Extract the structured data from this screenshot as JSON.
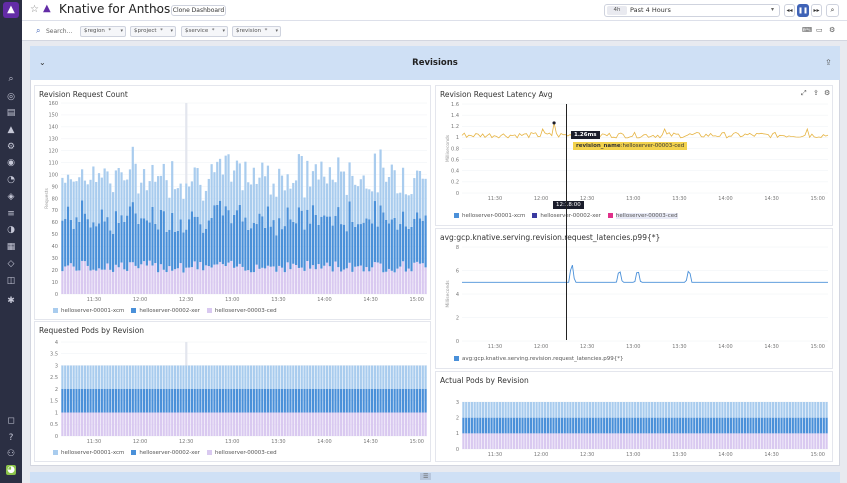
{
  "header": {
    "title": "Knative for Anthos",
    "clone_label": "Clone Dashboard",
    "time_badge": "4h",
    "time_range": "Past 4 Hours"
  },
  "toolbar": {
    "search_placeholder": "Search...",
    "variables": [
      {
        "label": "$region",
        "value": "*"
      },
      {
        "label": "$project",
        "value": "*"
      },
      {
        "label": "$service",
        "value": "*"
      },
      {
        "label": "$revision",
        "value": "*"
      }
    ]
  },
  "group": {
    "title": "Revisions"
  },
  "widgets": {
    "req_count": {
      "title": "Revision Request Count",
      "ylabel": "Requests"
    },
    "latency": {
      "title": "Revision Request Latency Avg",
      "ylabel": "Milliseconds",
      "tooltip_value": "1.26ms",
      "tooltip_label": "revision_name",
      "tooltip_series": "helloserver-00003-ced",
      "cursor_time": "12:18:00"
    },
    "p99": {
      "title": "avg:gcp.knative.serving.revision.request_latencies.p99{*}",
      "ylabel": "Milliseconds",
      "legend": "avg:gcp.knative.serving.revision.request_latencies.p99{*}"
    },
    "req_pods": {
      "title": "Requested Pods by Revision"
    },
    "actual_pods": {
      "title": "Actual Pods by Revision"
    }
  },
  "colors": {
    "s1": "#a9ccee",
    "s2": "#4a90d9",
    "s3": "#d9c9f0",
    "accent": "#632ca6",
    "latency": "#e6b443",
    "p99": "#4a90d9"
  },
  "chart_data": [
    {
      "type": "bar",
      "title": "Revision Request Count",
      "ylabel": "Requests",
      "ylim": [
        0,
        160
      ],
      "yticks": [
        0,
        10,
        20,
        30,
        40,
        50,
        60,
        70,
        80,
        90,
        100,
        110,
        120,
        130,
        140,
        150,
        160
      ],
      "xticks": [
        "11:30",
        "12:00",
        "12:30",
        "13:00",
        "13:30",
        "14:00",
        "14:30",
        "15:00"
      ],
      "stacked": true,
      "series": [
        {
          "name": "helloserver-00001-xcm",
          "approx_range": [
            25,
            45
          ]
        },
        {
          "name": "helloserver-00002-xer",
          "approx_range": [
            30,
            50
          ]
        },
        {
          "name": "helloserver-00003-ced",
          "approx_range": [
            20,
            30
          ]
        }
      ],
      "approx_total_range": [
        75,
        115
      ]
    },
    {
      "type": "line",
      "title": "Revision Request Latency Avg",
      "ylabel": "Milliseconds",
      "ylim": [
        0,
        1.6
      ],
      "yticks": [
        0,
        0.2,
        0.4,
        0.6,
        0.8,
        1,
        1.2,
        1.4,
        1.6
      ],
      "xticks": [
        "11:30",
        "12:00",
        "12:30",
        "13:00",
        "13:30",
        "14:00",
        "14:30",
        "15:00"
      ],
      "series": [
        {
          "name": "helloserver-00001-xcm",
          "approx_value": 1.05
        },
        {
          "name": "helloserver-00002-xer",
          "approx_value": 1.05
        },
        {
          "name": "helloserver-00003-ced",
          "approx_value": 1.05
        }
      ],
      "tooltip": {
        "value": "1.26ms",
        "time": "12:18:00",
        "series": "helloserver-00003-ced"
      }
    },
    {
      "type": "line",
      "title": "avg:gcp.knative.serving.revision.request_latencies.p99{*}",
      "ylabel": "Milliseconds",
      "ylim": [
        0,
        8
      ],
      "yticks": [
        0,
        2,
        4,
        6,
        8
      ],
      "xticks": [
        "11:30",
        "12:00",
        "12:30",
        "13:00",
        "13:30",
        "14:00",
        "14:30",
        "15:00"
      ],
      "series": [
        {
          "name": "avg:gcp.knative.serving.revision.request_latencies.p99{*}",
          "baseline": 5,
          "spikes": [
            6.8,
            6.2,
            6.2,
            6.2
          ]
        }
      ]
    },
    {
      "type": "bar",
      "title": "Requested Pods by Revision",
      "ylim": [
        0,
        4
      ],
      "yticks": [
        0,
        0.5,
        1,
        1.5,
        2,
        2.5,
        3,
        3.5,
        4
      ],
      "xticks": [
        "11:30",
        "12:00",
        "12:30",
        "13:00",
        "13:30",
        "14:00",
        "14:30",
        "15:00"
      ],
      "stacked": true,
      "series": [
        {
          "name": "helloserver-00001-xcm",
          "value": 1
        },
        {
          "name": "helloserver-00002-xer",
          "value": 1
        },
        {
          "name": "helloserver-00003-ced",
          "value": 1
        }
      ]
    },
    {
      "type": "bar",
      "title": "Actual Pods by Revision",
      "ylim": [
        0,
        3
      ],
      "yticks": [
        0,
        1,
        2,
        3
      ],
      "xticks": [
        "11:30",
        "12:00",
        "12:30",
        "13:00",
        "13:30",
        "14:00",
        "14:30",
        "15:00"
      ],
      "stacked": true,
      "series": [
        {
          "value": 1
        },
        {
          "value": 1
        },
        {
          "value": 1
        }
      ]
    }
  ],
  "legend_names": [
    "helloserver-00001-xcm",
    "helloserver-00002-xer",
    "helloserver-00003-ced"
  ]
}
